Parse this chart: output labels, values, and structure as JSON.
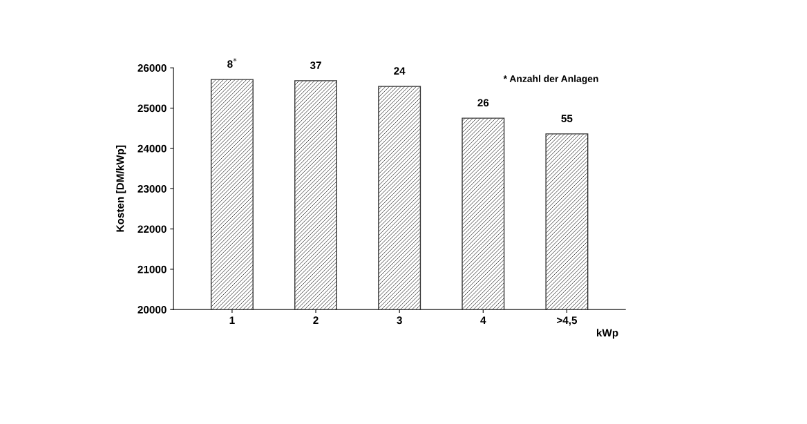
{
  "chart_data": {
    "type": "bar",
    "ylabel": "Kosten [DM/kWp]",
    "xlabel": "kWp",
    "categories": [
      "1",
      "2",
      "3",
      "4",
      ">4,5"
    ],
    "values": [
      25710,
      25680,
      25540,
      24750,
      24360
    ],
    "color": "#333333",
    "annotations": [
      "* Anzahl der Anlagen",
      {
        "text": "8$^{*}$",
        "x": "1",
        "y": 25710
      },
      {
        "text": "37",
        "x": "2",
        "y": 25680
      },
      {
        "text": "24",
        "x": "3",
        "y": 25540
      },
      {
        "text": "26",
        "x": "4",
        "y": 24750
      },
      {
        "text": "55",
        "x": ">4,5",
        "y": 24360
      }
    ],
    "ylim": [
      20000,
      26000
    ],
    "yticks": [
      20000,
      21000,
      22000,
      23000,
      24000,
      25000,
      26000
    ],
    "grid": false,
    "legend": false
  }
}
